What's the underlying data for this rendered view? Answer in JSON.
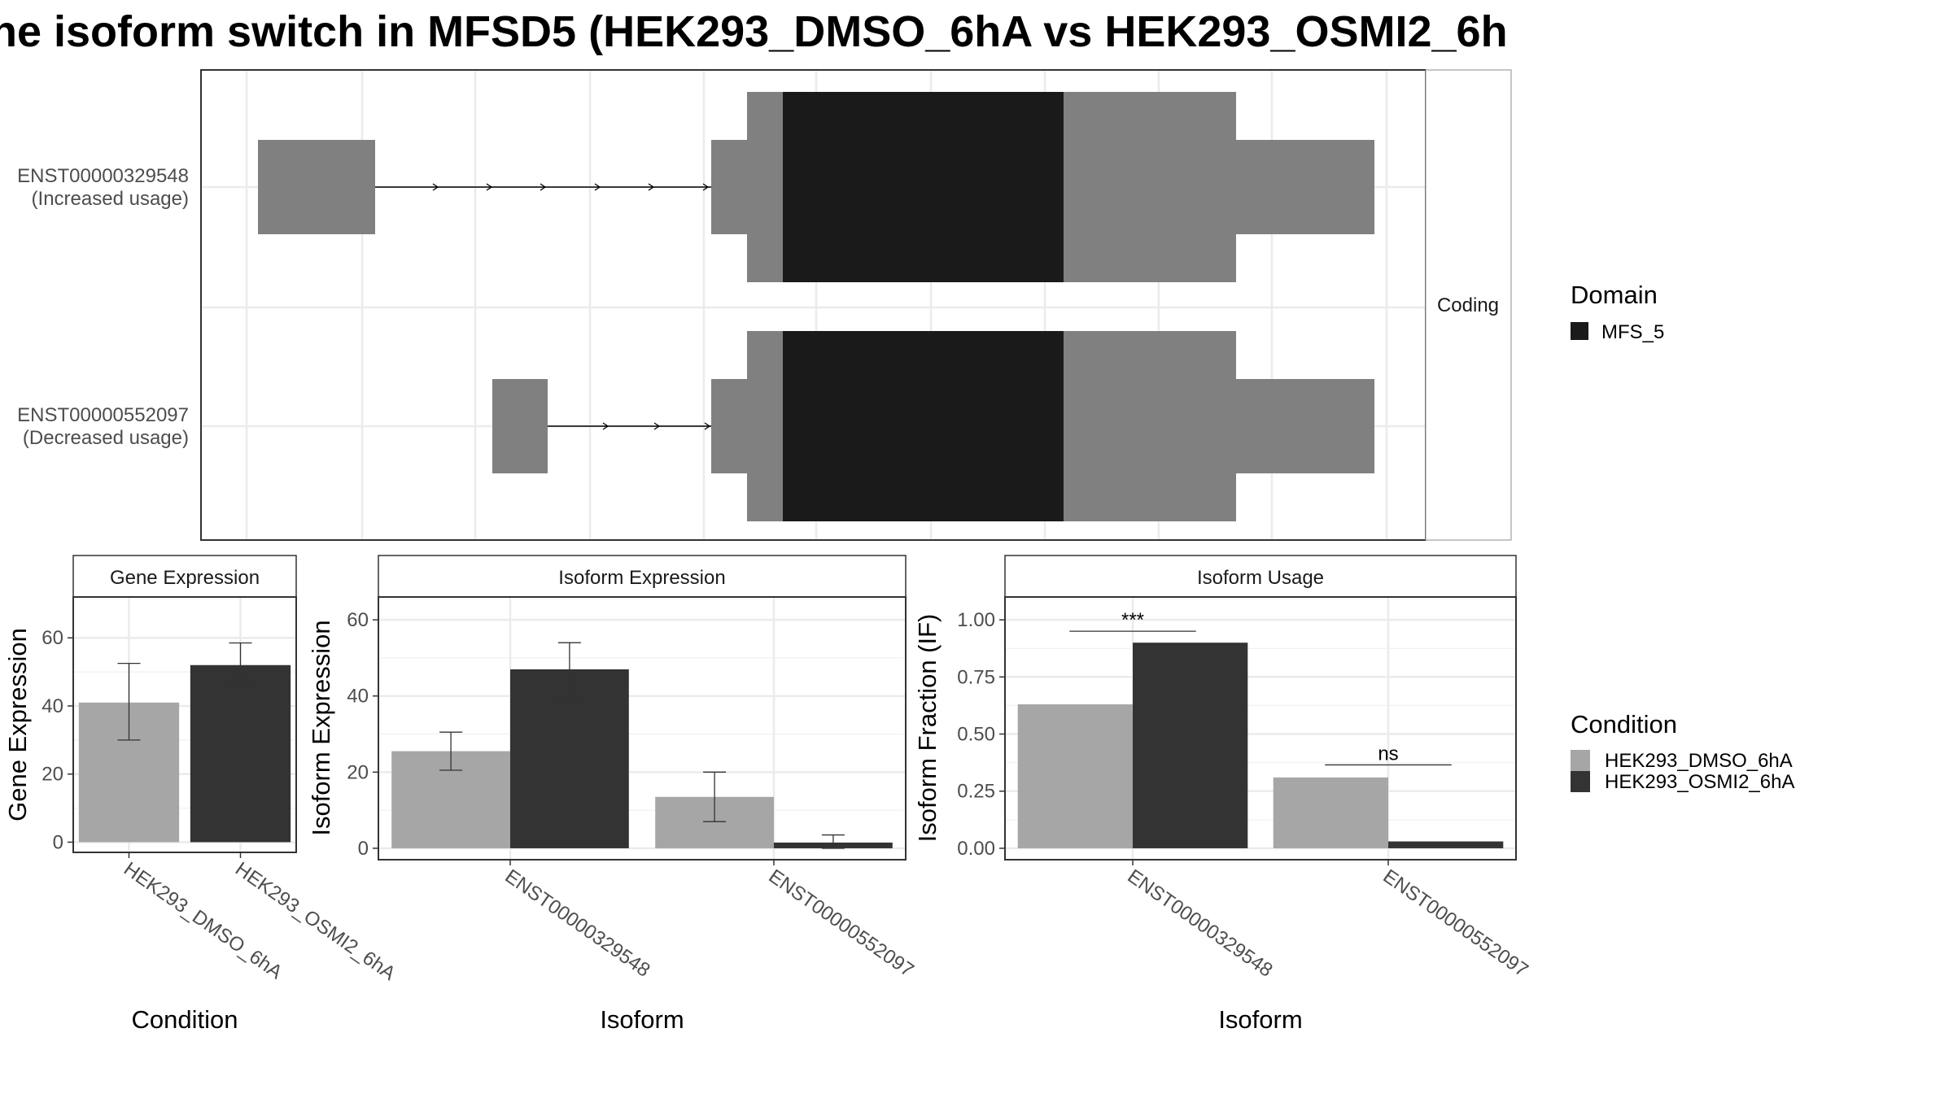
{
  "title": "ne isoform switch in MFSD5 (HEK293_DMSO_6hA vs HEK293_OSMI2_6h",
  "colors": {
    "utr": "#808080",
    "domain": "#1a1a1a",
    "cond1": "#a6a6a6",
    "cond2": "#333333",
    "grid": "#ebebeb",
    "panel_border": "#333333"
  },
  "chart_data": [
    {
      "type": "diagram",
      "name": "transcript-structure",
      "strip_label": "Coding",
      "rows": [
        {
          "id": "ENST00000329548",
          "subtitle": "(Increased usage)"
        },
        {
          "id": "ENST00000552097",
          "subtitle": "(Decreased usage)"
        }
      ],
      "legend": {
        "title": "Domain",
        "items": [
          {
            "label": "MFS_5",
            "color": "#1a1a1a"
          }
        ]
      }
    },
    {
      "type": "bar",
      "strip": "Gene Expression",
      "xlabel": "Condition",
      "ylabel": "Gene Expression",
      "ylim": [
        -3,
        72
      ],
      "yticks": [
        0,
        20,
        40,
        60
      ],
      "categories": [
        "HEK293_DMSO_6hA",
        "HEK293_OSMI2_6hA"
      ],
      "values": [
        41,
        52
      ],
      "errors": [
        [
          30,
          52.5
        ],
        [
          45.5,
          58.5
        ]
      ]
    },
    {
      "type": "bar",
      "strip": "Isoform Expression",
      "xlabel": "Isoform",
      "ylabel": "Isoform Expression",
      "ylim": [
        -3,
        66
      ],
      "yticks": [
        0,
        20,
        40,
        60
      ],
      "categories": [
        "ENST00000329548",
        "ENST00000552097"
      ],
      "series": [
        {
          "name": "HEK293_DMSO_6hA",
          "values": [
            25.5,
            13.5
          ],
          "errors": [
            [
              20.5,
              30.5
            ],
            [
              7,
              20
            ]
          ]
        },
        {
          "name": "HEK293_OSMI2_6hA",
          "values": [
            47,
            1.5
          ],
          "errors": [
            [
              39.5,
              54
            ],
            [
              0,
              3.5
            ]
          ]
        }
      ]
    },
    {
      "type": "bar",
      "strip": "Isoform Usage",
      "xlabel": "Isoform",
      "ylabel": "Isoform Fraction (IF)",
      "ylim": [
        -0.05,
        1.1
      ],
      "yticks": [
        0.0,
        0.25,
        0.5,
        0.75,
        1.0
      ],
      "ytick_labels": [
        "0.00",
        "0.25",
        "0.50",
        "0.75",
        "1.00"
      ],
      "categories": [
        "ENST00000329548",
        "ENST00000552097"
      ],
      "series": [
        {
          "name": "HEK293_DMSO_6hA",
          "values": [
            0.63,
            0.31
          ]
        },
        {
          "name": "HEK293_OSMI2_6hA",
          "values": [
            0.9,
            0.03
          ]
        }
      ],
      "significance": [
        "***",
        "ns"
      ]
    }
  ],
  "condition_legend": {
    "title": "Condition",
    "items": [
      {
        "label": "HEK293_DMSO_6hA",
        "color": "#a6a6a6"
      },
      {
        "label": "HEK293_OSMI2_6hA",
        "color": "#333333"
      }
    ]
  }
}
